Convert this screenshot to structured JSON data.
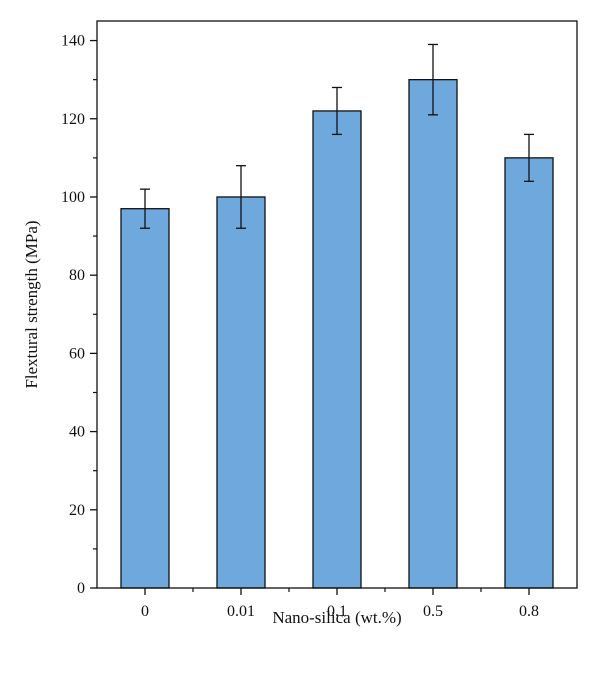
{
  "chart_data": {
    "type": "bar",
    "categories": [
      "0",
      "0.01",
      "0.1",
      "0.5",
      "0.8"
    ],
    "values": [
      97,
      100,
      122,
      130,
      110
    ],
    "error_bars": [
      {
        "low": 92,
        "high": 102
      },
      {
        "low": 92,
        "high": 108
      },
      {
        "low": 116,
        "high": 128
      },
      {
        "low": 121,
        "high": 139
      },
      {
        "low": 104,
        "high": 116
      }
    ],
    "xlabel": "Nano-silica (wt.%)",
    "ylabel": "Flextural strength (MPa)",
    "ylim": [
      0,
      145
    ],
    "yticks": [
      0,
      20,
      40,
      60,
      80,
      100,
      120,
      140
    ],
    "grid": false,
    "bar_color": "#6fa8dc",
    "edge_color": "#111111"
  }
}
